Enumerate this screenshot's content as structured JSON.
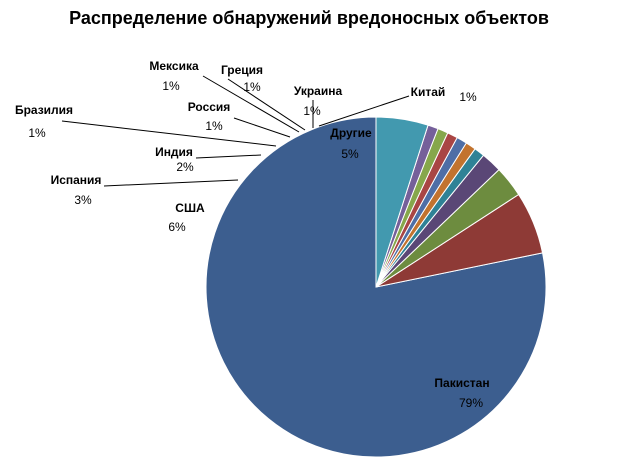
{
  "chart_data": {
    "type": "pie",
    "title": "Распределение обнаружений вредоносных объектов",
    "categories": [
      "Пакистан",
      "США",
      "Испания",
      "Индия",
      "Бразилия",
      "Россия",
      "Мексика",
      "Греция",
      "Украина",
      "Китай",
      "Другие"
    ],
    "values": [
      79,
      6,
      3,
      2,
      1,
      1,
      1,
      1,
      1,
      1,
      5
    ],
    "value_labels": [
      "79%",
      "6%",
      "3%",
      "2%",
      "1%",
      "1%",
      "1%",
      "1%",
      "1%",
      "1%",
      "5%"
    ],
    "colors": [
      "#3C5E8F",
      "#8E3A36",
      "#6D8C3F",
      "#5A4776",
      "#2F8296",
      "#C2732E",
      "#4E6EA6",
      "#A94544",
      "#86A74B",
      "#75609A",
      "#4299AF"
    ],
    "start_angle_deg": 0,
    "direction": "counterclockwise",
    "legend": "none",
    "data_labels": "outside-with-leader-lines"
  }
}
